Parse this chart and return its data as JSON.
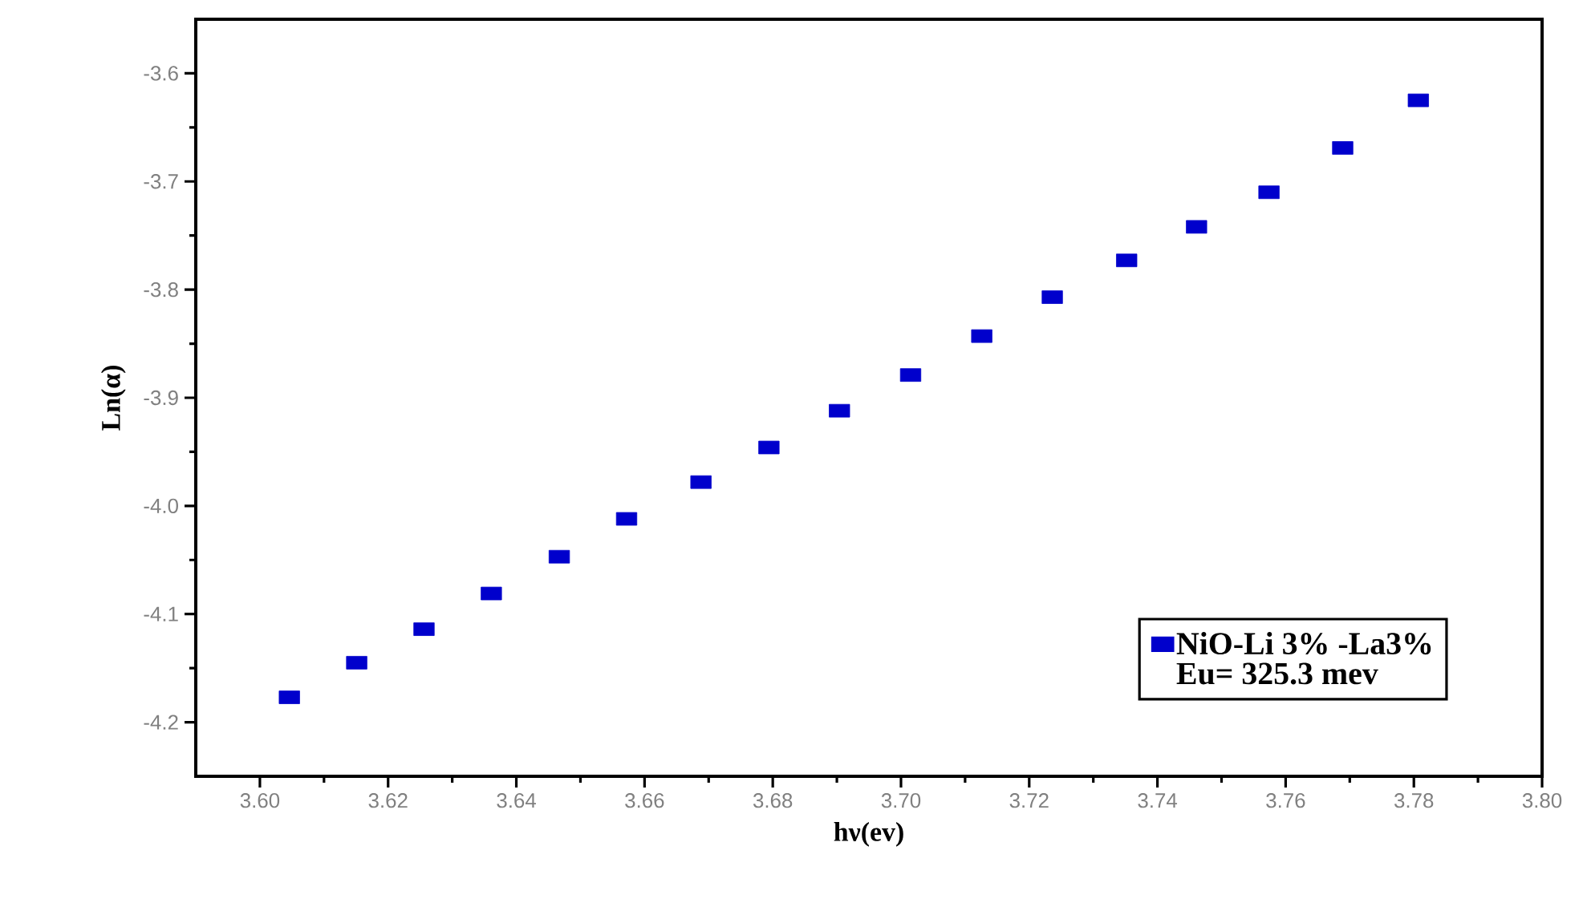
{
  "chart_data": {
    "type": "scatter",
    "xlabel": "hν(ev)",
    "ylabel": "Ln(α)",
    "xlim": [
      3.59,
      3.8
    ],
    "ylim": [
      -4.25,
      -3.55
    ],
    "xticks": [
      {
        "value": 3.6,
        "label": "3.60"
      },
      3.62,
      3.64,
      3.66,
      3.68,
      {
        "value": 3.7,
        "label": "3.70"
      },
      3.72,
      3.74,
      3.76,
      3.78,
      {
        "value": 3.8,
        "label": "3.80"
      }
    ],
    "yticks": [
      -4.2,
      -4.1,
      {
        "value": -4.0,
        "label": "-4.0"
      },
      -3.9,
      -3.8,
      -3.7,
      -3.6
    ],
    "series": [
      {
        "name": "NiO-Li 3% -La3%",
        "color": "#0000cc",
        "x": [
          3.6046,
          3.6151,
          3.6256,
          3.6361,
          3.6467,
          3.6572,
          3.6688,
          3.6794,
          3.6904,
          3.7015,
          3.7126,
          3.7236,
          3.7352,
          3.7461,
          3.7574,
          3.7689,
          3.7807
        ],
        "values": [
          -4.177,
          -4.145,
          -4.114,
          -4.081,
          -4.047,
          -4.012,
          -3.978,
          -3.946,
          -3.912,
          -3.879,
          -3.843,
          -3.807,
          -3.773,
          -3.742,
          -3.71,
          -3.669,
          -3.625
        ]
      }
    ],
    "annotations": [
      "Eu= 325.3 mev"
    ],
    "marker": "square",
    "legend": "bottom right",
    "grid": false
  }
}
